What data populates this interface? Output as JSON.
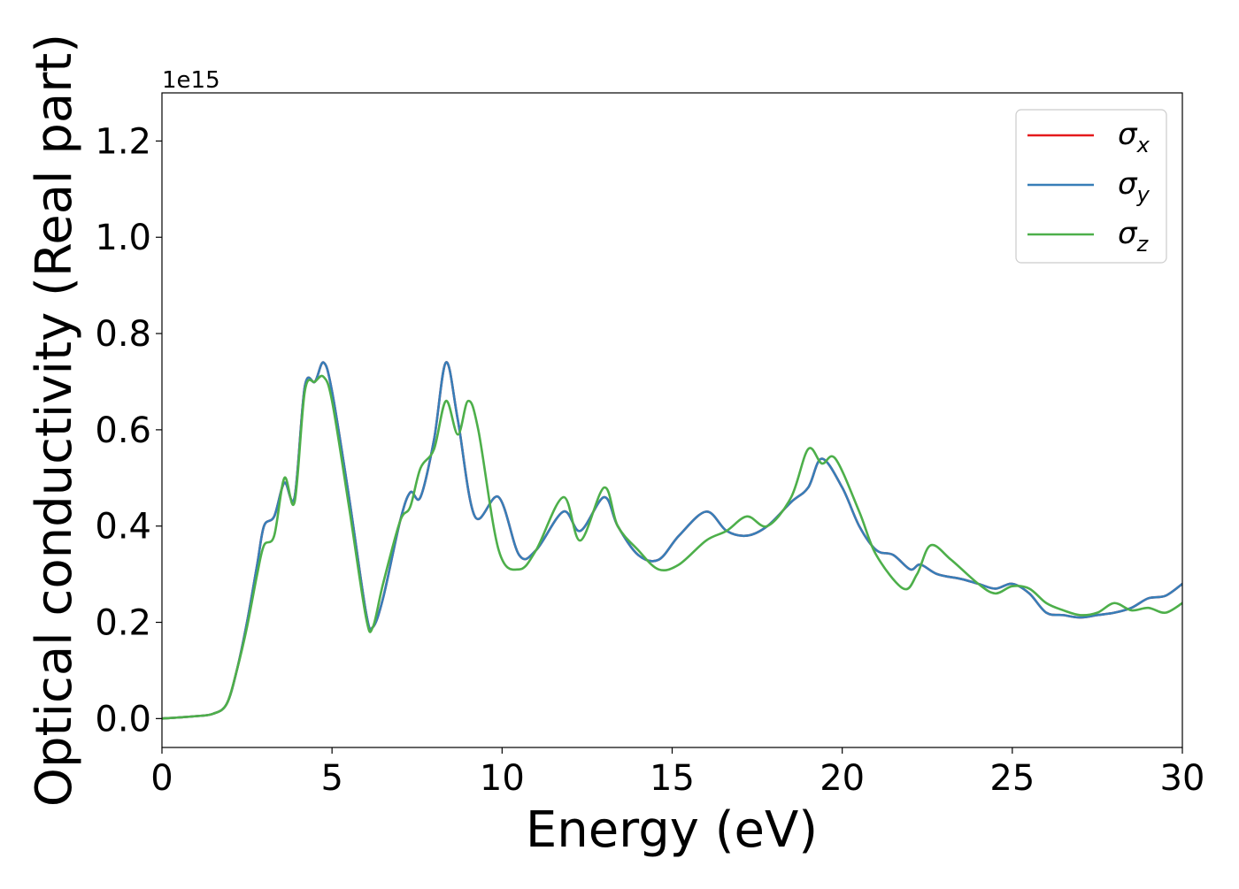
{
  "chart_data": {
    "type": "line",
    "xlabel": "Energy (eV)",
    "ylabel": "Optical conductivity (Real part)",
    "y_offset_text": "1e15",
    "xlim": [
      0,
      30
    ],
    "ylim": [
      -0.06,
      1.3
    ],
    "xticks": [
      0,
      5,
      10,
      15,
      20,
      25,
      30
    ],
    "xtick_labels": [
      "0",
      "5",
      "10",
      "15",
      "20",
      "25",
      "30"
    ],
    "yticks": [
      0.0,
      0.2,
      0.4,
      0.6,
      0.8,
      1.0,
      1.2
    ],
    "ytick_labels": [
      "0.0",
      "0.2",
      "0.4",
      "0.6",
      "0.8",
      "1.0",
      "1.2"
    ],
    "grid": false,
    "legend_position": "top-right",
    "series": [
      {
        "name": "σx",
        "symbol": "σ",
        "subscript": "x",
        "color": "#e41a1c",
        "x": [
          0,
          1,
          1.5,
          1.9,
          2.2,
          2.5,
          2.8,
          3.0,
          3.3,
          3.6,
          3.9,
          4.2,
          4.5,
          4.75,
          5.0,
          5.5,
          6.0,
          6.2,
          6.5,
          7.0,
          7.3,
          7.6,
          8.0,
          8.35,
          8.7,
          9.2,
          9.9,
          10.5,
          11.0,
          11.8,
          12.3,
          13.0,
          13.4,
          14.0,
          14.6,
          15.2,
          16.0,
          16.6,
          17.2,
          17.8,
          18.5,
          19.0,
          19.4,
          20.0,
          20.5,
          21.0,
          21.5,
          22.0,
          22.3,
          22.8,
          23.5,
          24.0,
          24.5,
          25.0,
          25.5,
          26.0,
          26.5,
          27.0,
          27.5,
          28.0,
          28.5,
          29.0,
          29.5,
          30.0
        ],
        "y": [
          0.0,
          0.005,
          0.01,
          0.03,
          0.1,
          0.2,
          0.32,
          0.4,
          0.42,
          0.49,
          0.46,
          0.69,
          0.7,
          0.74,
          0.68,
          0.46,
          0.22,
          0.19,
          0.25,
          0.41,
          0.47,
          0.46,
          0.58,
          0.74,
          0.62,
          0.42,
          0.46,
          0.34,
          0.35,
          0.43,
          0.39,
          0.46,
          0.4,
          0.34,
          0.33,
          0.38,
          0.43,
          0.39,
          0.38,
          0.4,
          0.45,
          0.48,
          0.54,
          0.48,
          0.4,
          0.35,
          0.34,
          0.31,
          0.32,
          0.3,
          0.29,
          0.28,
          0.27,
          0.28,
          0.26,
          0.22,
          0.215,
          0.21,
          0.215,
          0.22,
          0.23,
          0.25,
          0.255,
          0.28
        ]
      },
      {
        "name": "σy",
        "symbol": "σ",
        "subscript": "y",
        "color": "#377eb8",
        "x": [
          0,
          1,
          1.5,
          1.9,
          2.2,
          2.5,
          2.8,
          3.0,
          3.3,
          3.6,
          3.9,
          4.2,
          4.5,
          4.75,
          5.0,
          5.5,
          6.0,
          6.2,
          6.5,
          7.0,
          7.3,
          7.6,
          8.0,
          8.35,
          8.7,
          9.2,
          9.9,
          10.5,
          11.0,
          11.8,
          12.3,
          13.0,
          13.4,
          14.0,
          14.6,
          15.2,
          16.0,
          16.6,
          17.2,
          17.8,
          18.5,
          19.0,
          19.4,
          20.0,
          20.5,
          21.0,
          21.5,
          22.0,
          22.3,
          22.8,
          23.5,
          24.0,
          24.5,
          25.0,
          25.5,
          26.0,
          26.5,
          27.0,
          27.5,
          28.0,
          28.5,
          29.0,
          29.5,
          30.0
        ],
        "y": [
          0.0,
          0.005,
          0.01,
          0.03,
          0.1,
          0.2,
          0.32,
          0.4,
          0.42,
          0.49,
          0.46,
          0.69,
          0.7,
          0.74,
          0.68,
          0.46,
          0.22,
          0.19,
          0.25,
          0.41,
          0.47,
          0.46,
          0.58,
          0.74,
          0.62,
          0.42,
          0.46,
          0.34,
          0.35,
          0.43,
          0.39,
          0.46,
          0.4,
          0.34,
          0.33,
          0.38,
          0.43,
          0.39,
          0.38,
          0.4,
          0.45,
          0.48,
          0.54,
          0.48,
          0.4,
          0.35,
          0.34,
          0.31,
          0.32,
          0.3,
          0.29,
          0.28,
          0.27,
          0.28,
          0.26,
          0.22,
          0.215,
          0.21,
          0.215,
          0.22,
          0.23,
          0.25,
          0.255,
          0.28
        ]
      },
      {
        "name": "σz",
        "symbol": "σ",
        "subscript": "z",
        "color": "#4daf4a",
        "x": [
          0,
          1,
          1.5,
          1.9,
          2.2,
          2.5,
          2.8,
          3.0,
          3.3,
          3.6,
          3.9,
          4.2,
          4.5,
          4.75,
          5.0,
          5.5,
          6.0,
          6.2,
          6.5,
          7.0,
          7.3,
          7.6,
          8.0,
          8.35,
          8.7,
          9.0,
          9.3,
          9.9,
          10.5,
          11.0,
          11.8,
          12.3,
          13.0,
          13.4,
          14.0,
          14.6,
          15.2,
          16.0,
          16.6,
          17.2,
          17.8,
          18.5,
          19.0,
          19.4,
          19.8,
          20.5,
          21.0,
          21.8,
          22.2,
          22.6,
          23.2,
          24.0,
          24.5,
          25.0,
          25.5,
          26.0,
          26.5,
          27.0,
          27.5,
          28.0,
          28.5,
          29.0,
          29.5,
          30.0
        ],
        "y": [
          0.0,
          0.005,
          0.01,
          0.03,
          0.1,
          0.19,
          0.3,
          0.36,
          0.38,
          0.5,
          0.45,
          0.68,
          0.7,
          0.71,
          0.66,
          0.44,
          0.21,
          0.19,
          0.28,
          0.41,
          0.44,
          0.52,
          0.56,
          0.66,
          0.59,
          0.66,
          0.6,
          0.35,
          0.31,
          0.35,
          0.46,
          0.37,
          0.48,
          0.4,
          0.35,
          0.31,
          0.32,
          0.37,
          0.39,
          0.42,
          0.4,
          0.46,
          0.56,
          0.53,
          0.54,
          0.43,
          0.34,
          0.27,
          0.3,
          0.36,
          0.33,
          0.28,
          0.26,
          0.275,
          0.27,
          0.24,
          0.225,
          0.215,
          0.22,
          0.24,
          0.225,
          0.23,
          0.22,
          0.24
        ]
      }
    ]
  }
}
